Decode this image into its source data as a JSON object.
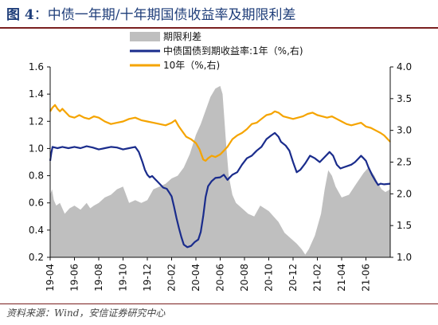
{
  "figure": {
    "number": "图 4",
    "title": "中债一年期/十年期国债收益率及期限利差",
    "source": "资料来源：Wind，安信证券研究中心"
  },
  "chart_data": {
    "type": "area+line",
    "legend_position": "top-center",
    "grid": false,
    "series": [
      {
        "name": "期限利差",
        "type": "area",
        "axis": "left",
        "color": "#bfbfbf",
        "points": [
          [
            0,
            0.66
          ],
          [
            0.15,
            0.7
          ],
          [
            0.3,
            0.62
          ],
          [
            0.5,
            0.58
          ],
          [
            0.8,
            0.6
          ],
          [
            1.2,
            0.52
          ],
          [
            1.6,
            0.56
          ],
          [
            2.0,
            0.58
          ],
          [
            2.5,
            0.55
          ],
          [
            3.0,
            0.6
          ],
          [
            3.3,
            0.56
          ],
          [
            3.6,
            0.58
          ],
          [
            4.0,
            0.6
          ],
          [
            4.5,
            0.64
          ],
          [
            5.0,
            0.66
          ],
          [
            5.5,
            0.7
          ],
          [
            6.0,
            0.72
          ],
          [
            6.5,
            0.6
          ],
          [
            7.0,
            0.62
          ],
          [
            7.5,
            0.6
          ],
          [
            8.0,
            0.62
          ],
          [
            8.5,
            0.7
          ],
          [
            9.0,
            0.72
          ],
          [
            9.5,
            0.74
          ],
          [
            10.0,
            0.78
          ],
          [
            10.5,
            0.8
          ],
          [
            11.0,
            0.86
          ],
          [
            11.5,
            0.96
          ],
          [
            12.0,
            1.1
          ],
          [
            12.4,
            1.18
          ],
          [
            12.8,
            1.28
          ],
          [
            13.2,
            1.38
          ],
          [
            13.6,
            1.44
          ],
          [
            14.0,
            1.46
          ],
          [
            14.2,
            1.4
          ],
          [
            14.5,
            1.02
          ],
          [
            14.7,
            0.8
          ],
          [
            15.0,
            0.66
          ],
          [
            15.3,
            0.6
          ],
          [
            15.8,
            0.56
          ],
          [
            16.3,
            0.52
          ],
          [
            16.8,
            0.5
          ],
          [
            17.3,
            0.58
          ],
          [
            18.0,
            0.54
          ],
          [
            18.8,
            0.46
          ],
          [
            19.3,
            0.38
          ],
          [
            19.8,
            0.34
          ],
          [
            20.3,
            0.3
          ],
          [
            20.7,
            0.26
          ],
          [
            21.0,
            0.22
          ],
          [
            21.3,
            0.26
          ],
          [
            21.8,
            0.36
          ],
          [
            22.3,
            0.52
          ],
          [
            22.6,
            0.7
          ],
          [
            22.9,
            0.84
          ],
          [
            23.2,
            0.8
          ],
          [
            23.5,
            0.72
          ],
          [
            24.0,
            0.64
          ],
          [
            24.6,
            0.66
          ],
          [
            25.2,
            0.74
          ],
          [
            25.8,
            0.82
          ],
          [
            26.2,
            0.86
          ],
          [
            26.7,
            0.8
          ],
          [
            27.0,
            0.74
          ],
          [
            27.3,
            0.7
          ],
          [
            27.6,
            0.68
          ],
          [
            28.0,
            0.7
          ]
        ]
      },
      {
        "name": "中债国债到期收益率:1年（%,右)",
        "type": "line",
        "axis": "right",
        "color": "#1a2c8c",
        "points": [
          [
            0,
            2.52
          ],
          [
            0.1,
            2.65
          ],
          [
            0.2,
            2.74
          ],
          [
            0.6,
            2.72
          ],
          [
            1.0,
            2.74
          ],
          [
            1.5,
            2.72
          ],
          [
            2.0,
            2.74
          ],
          [
            2.5,
            2.72
          ],
          [
            3.0,
            2.75
          ],
          [
            3.5,
            2.73
          ],
          [
            4.0,
            2.7
          ],
          [
            4.5,
            2.72
          ],
          [
            5.0,
            2.74
          ],
          [
            5.5,
            2.73
          ],
          [
            6.0,
            2.7
          ],
          [
            6.5,
            2.72
          ],
          [
            7.0,
            2.74
          ],
          [
            7.3,
            2.66
          ],
          [
            7.6,
            2.5
          ],
          [
            7.8,
            2.38
          ],
          [
            8.0,
            2.3
          ],
          [
            8.2,
            2.26
          ],
          [
            8.4,
            2.28
          ],
          [
            8.6,
            2.24
          ],
          [
            8.8,
            2.2
          ],
          [
            9.0,
            2.16
          ],
          [
            9.3,
            2.1
          ],
          [
            9.6,
            2.08
          ],
          [
            9.8,
            2.02
          ],
          [
            10.0,
            1.96
          ],
          [
            10.2,
            1.8
          ],
          [
            10.4,
            1.62
          ],
          [
            10.6,
            1.46
          ],
          [
            10.8,
            1.32
          ],
          [
            11.0,
            1.2
          ],
          [
            11.3,
            1.16
          ],
          [
            11.6,
            1.18
          ],
          [
            11.9,
            1.24
          ],
          [
            12.2,
            1.28
          ],
          [
            12.4,
            1.4
          ],
          [
            12.6,
            1.65
          ],
          [
            12.8,
            1.95
          ],
          [
            13.0,
            2.12
          ],
          [
            13.3,
            2.2
          ],
          [
            13.6,
            2.25
          ],
          [
            14.0,
            2.26
          ],
          [
            14.3,
            2.3
          ],
          [
            14.6,
            2.22
          ],
          [
            15.0,
            2.3
          ],
          [
            15.4,
            2.34
          ],
          [
            15.8,
            2.46
          ],
          [
            16.2,
            2.56
          ],
          [
            16.6,
            2.6
          ],
          [
            17.0,
            2.68
          ],
          [
            17.4,
            2.74
          ],
          [
            17.8,
            2.86
          ],
          [
            18.2,
            2.92
          ],
          [
            18.5,
            2.96
          ],
          [
            18.8,
            2.9
          ],
          [
            19.0,
            2.82
          ],
          [
            19.4,
            2.76
          ],
          [
            19.7,
            2.68
          ],
          [
            20.0,
            2.5
          ],
          [
            20.3,
            2.34
          ],
          [
            20.6,
            2.38
          ],
          [
            21.0,
            2.48
          ],
          [
            21.4,
            2.6
          ],
          [
            21.8,
            2.56
          ],
          [
            22.2,
            2.5
          ],
          [
            22.6,
            2.58
          ],
          [
            23.0,
            2.66
          ],
          [
            23.3,
            2.6
          ],
          [
            23.6,
            2.46
          ],
          [
            23.9,
            2.4
          ],
          [
            24.2,
            2.42
          ],
          [
            24.5,
            2.44
          ],
          [
            24.8,
            2.46
          ],
          [
            25.1,
            2.5
          ],
          [
            25.4,
            2.56
          ],
          [
            25.6,
            2.6
          ],
          [
            25.8,
            2.56
          ],
          [
            26.0,
            2.52
          ],
          [
            26.2,
            2.42
          ],
          [
            26.5,
            2.3
          ],
          [
            26.8,
            2.2
          ],
          [
            27.0,
            2.14
          ],
          [
            27.2,
            2.16
          ],
          [
            27.5,
            2.15
          ],
          [
            28.0,
            2.16
          ]
        ]
      },
      {
        "name": "10年（%,右)",
        "type": "line",
        "axis": "right",
        "color": "#f5a400",
        "points": [
          [
            0,
            3.3
          ],
          [
            0.2,
            3.36
          ],
          [
            0.4,
            3.4
          ],
          [
            0.6,
            3.34
          ],
          [
            0.8,
            3.3
          ],
          [
            1.0,
            3.34
          ],
          [
            1.3,
            3.28
          ],
          [
            1.6,
            3.22
          ],
          [
            2.0,
            3.2
          ],
          [
            2.4,
            3.24
          ],
          [
            2.8,
            3.2
          ],
          [
            3.2,
            3.18
          ],
          [
            3.6,
            3.22
          ],
          [
            4.0,
            3.2
          ],
          [
            4.5,
            3.14
          ],
          [
            5.0,
            3.1
          ],
          [
            5.5,
            3.12
          ],
          [
            6.0,
            3.14
          ],
          [
            6.5,
            3.18
          ],
          [
            7.0,
            3.2
          ],
          [
            7.5,
            3.16
          ],
          [
            8.0,
            3.14
          ],
          [
            8.5,
            3.12
          ],
          [
            9.0,
            3.1
          ],
          [
            9.5,
            3.08
          ],
          [
            10.0,
            3.12
          ],
          [
            10.3,
            3.16
          ],
          [
            10.6,
            3.06
          ],
          [
            10.9,
            2.98
          ],
          [
            11.2,
            2.9
          ],
          [
            11.6,
            2.86
          ],
          [
            12.0,
            2.8
          ],
          [
            12.3,
            2.7
          ],
          [
            12.6,
            2.54
          ],
          [
            12.8,
            2.52
          ],
          [
            13.0,
            2.56
          ],
          [
            13.3,
            2.6
          ],
          [
            13.6,
            2.58
          ],
          [
            14.0,
            2.62
          ],
          [
            14.3,
            2.68
          ],
          [
            14.6,
            2.74
          ],
          [
            15.0,
            2.86
          ],
          [
            15.4,
            2.92
          ],
          [
            15.8,
            2.96
          ],
          [
            16.2,
            3.02
          ],
          [
            16.6,
            3.1
          ],
          [
            17.0,
            3.12
          ],
          [
            17.4,
            3.18
          ],
          [
            17.8,
            3.24
          ],
          [
            18.2,
            3.26
          ],
          [
            18.5,
            3.3
          ],
          [
            18.8,
            3.28
          ],
          [
            19.2,
            3.22
          ],
          [
            19.6,
            3.2
          ],
          [
            20.0,
            3.18
          ],
          [
            20.4,
            3.2
          ],
          [
            20.8,
            3.22
          ],
          [
            21.2,
            3.26
          ],
          [
            21.6,
            3.28
          ],
          [
            22.0,
            3.24
          ],
          [
            22.4,
            3.22
          ],
          [
            22.8,
            3.2
          ],
          [
            23.2,
            3.22
          ],
          [
            23.6,
            3.18
          ],
          [
            24.0,
            3.14
          ],
          [
            24.4,
            3.1
          ],
          [
            24.8,
            3.08
          ],
          [
            25.2,
            3.1
          ],
          [
            25.6,
            3.12
          ],
          [
            26.0,
            3.06
          ],
          [
            26.4,
            3.04
          ],
          [
            26.8,
            3.0
          ],
          [
            27.2,
            2.96
          ],
          [
            27.5,
            2.92
          ],
          [
            27.8,
            2.86
          ],
          [
            28.0,
            2.82
          ]
        ]
      }
    ],
    "x_axis": {
      "domain": [
        0,
        28
      ],
      "ticks": [
        {
          "x": 0.0,
          "label": "19-04"
        },
        {
          "x": 2.0,
          "label": "19-06"
        },
        {
          "x": 4.0,
          "label": "19-08"
        },
        {
          "x": 6.0,
          "label": "19-10"
        },
        {
          "x": 8.0,
          "label": "19-12"
        },
        {
          "x": 10.0,
          "label": "20-02"
        },
        {
          "x": 12.0,
          "label": "20-04"
        },
        {
          "x": 14.0,
          "label": "20-06"
        },
        {
          "x": 16.0,
          "label": "20-08"
        },
        {
          "x": 18.0,
          "label": "20-10"
        },
        {
          "x": 20.0,
          "label": "20-12"
        },
        {
          "x": 22.0,
          "label": "21-02"
        },
        {
          "x": 24.0,
          "label": "21-04"
        },
        {
          "x": 26.0,
          "label": "21-06"
        }
      ]
    },
    "y_left": {
      "min": 0.2,
      "max": 1.6,
      "ticks": [
        "0.2",
        "0.4",
        "0.6",
        "0.8",
        "1.0",
        "1.2",
        "1.4",
        "1.6"
      ]
    },
    "y_right": {
      "min": 1.0,
      "max": 4.0,
      "ticks": [
        "1.0",
        "1.5",
        "2.0",
        "2.5",
        "3.0",
        "3.5",
        "4.0"
      ]
    }
  }
}
